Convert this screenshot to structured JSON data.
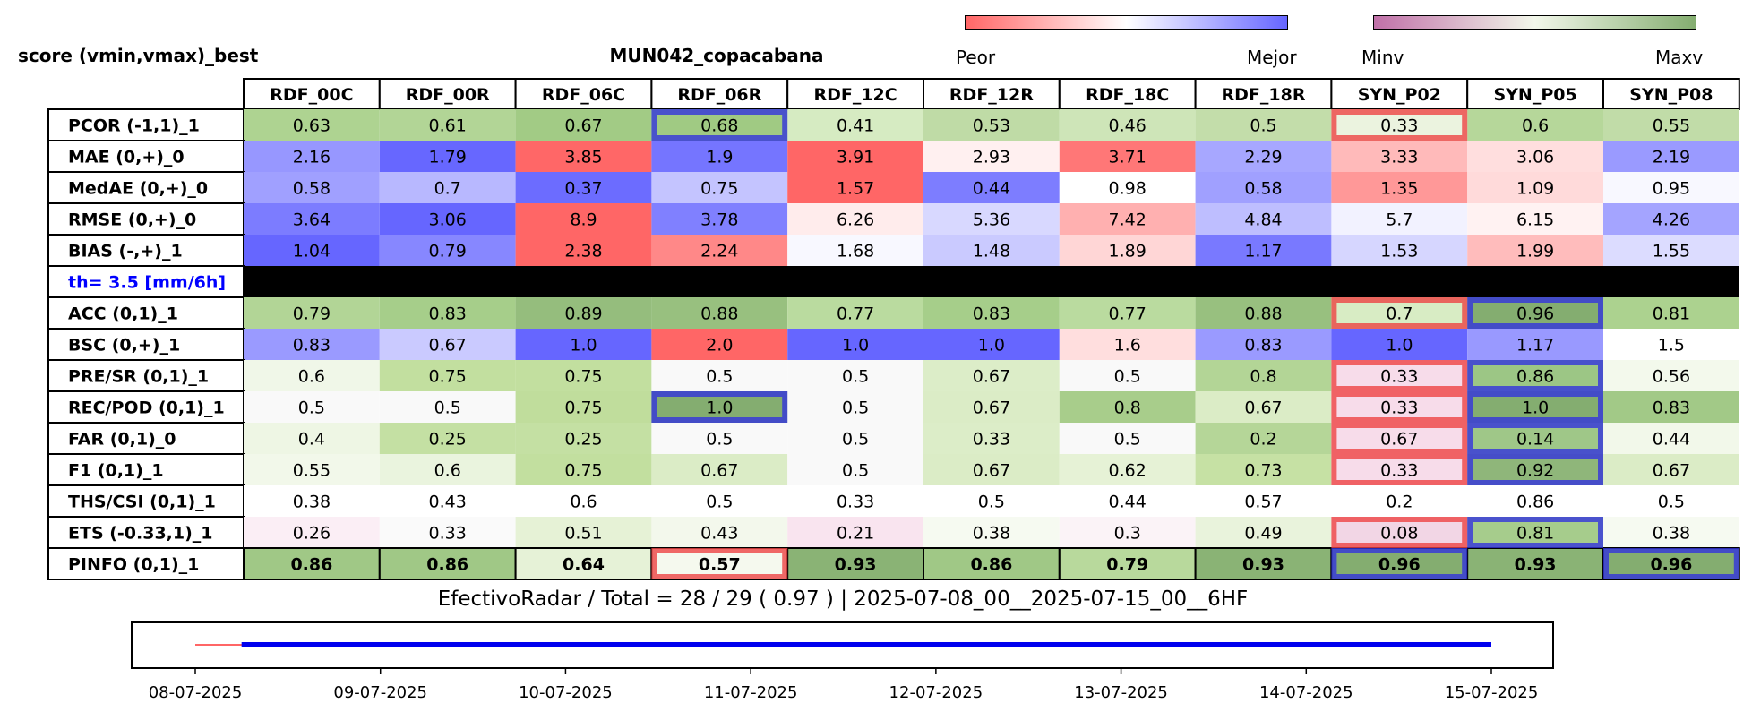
{
  "header": {
    "left_label": "score (vmin,vmax)_best",
    "title": "MUN042_copacabana"
  },
  "colorbars": {
    "diverging": {
      "low_label": "Peor",
      "high_label": "Mejor",
      "low_color": "#ff6666",
      "mid_color": "#ffffff",
      "high_color": "#6666ff"
    },
    "sequential": {
      "low_label": "Minv",
      "high_label": "Maxv",
      "low_color": "#c070a8",
      "mid_color": "#f2f7ea",
      "high_color": "#84ad70"
    }
  },
  "chart_data": {
    "type": "heatmap",
    "columns": [
      "RDF_00C",
      "RDF_00R",
      "RDF_06C",
      "RDF_06R",
      "RDF_12C",
      "RDF_12R",
      "RDF_18C",
      "RDF_18R",
      "SYN_P02",
      "SYN_P05",
      "SYN_P08"
    ],
    "rows": [
      {
        "label": "PCOR (-1,1)_1",
        "values": [
          "0.63",
          "0.61",
          "0.67",
          "0.68",
          "0.41",
          "0.53",
          "0.46",
          "0.5",
          "0.33",
          "0.6",
          "0.55"
        ],
        "colors": [
          "#aed391",
          "#b2d596",
          "#a2cb85",
          "#a0ca83",
          "#d6ebc2",
          "#bfdba6",
          "#cee5b8",
          "#c3ddaa",
          "#ebf3df",
          "#b6d79a",
          "#c1dca8"
        ]
      },
      {
        "label": "MAE (0,+)_0",
        "values": [
          "2.16",
          "1.79",
          "3.85",
          "1.9",
          "3.91",
          "2.93",
          "3.71",
          "2.29",
          "3.33",
          "3.06",
          "2.19"
        ],
        "colors": [
          "#9797ff",
          "#6767ff",
          "#ff6767",
          "#7575ff",
          "#ff6666",
          "#fff0f0",
          "#ff7777",
          "#a7a7ff",
          "#ffbaba",
          "#ffdede",
          "#9a9aff"
        ]
      },
      {
        "label": "MedAE (0,+)_0",
        "values": [
          "0.58",
          "0.7",
          "0.37",
          "0.75",
          "1.57",
          "0.44",
          "0.98",
          "0.58",
          "1.35",
          "1.09",
          "0.95"
        ],
        "colors": [
          "#a0a0ff",
          "#b8b8ff",
          "#6c6cff",
          "#c4c4ff",
          "#ff6666",
          "#7d7dff",
          "#ffffff",
          "#a0a0ff",
          "#ff9898",
          "#ffdada",
          "#f8f8ff"
        ]
      },
      {
        "label": "RMSE (0,+)_0",
        "values": [
          "3.64",
          "3.06",
          "8.9",
          "3.78",
          "6.26",
          "5.36",
          "7.42",
          "4.84",
          "5.7",
          "6.15",
          "4.26"
        ],
        "colors": [
          "#7c7cff",
          "#6666ff",
          "#ff6666",
          "#8080ff",
          "#ffecec",
          "#d8d8ff",
          "#ffb0b0",
          "#bebeff",
          "#f2f2ff",
          "#fff2f2",
          "#a4a4ff"
        ]
      },
      {
        "label": "BIAS (-,+)_1",
        "values": [
          "1.04",
          "0.79",
          "2.38",
          "2.24",
          "1.68",
          "1.48",
          "1.89",
          "1.17",
          "1.53",
          "1.99",
          "1.55"
        ],
        "colors": [
          "#6666ff",
          "#8787ff",
          "#ff6666",
          "#ff8888",
          "#f8f8ff",
          "#cacaff",
          "#ffd6d6",
          "#7979ff",
          "#d6d6ff",
          "#ffbcbc",
          "#dcdcff"
        ]
      },
      {
        "label": "th= 3.5 [mm/6h]",
        "separator": true
      },
      {
        "label": "ACC (0,1)_1",
        "values": [
          "0.79",
          "0.83",
          "0.89",
          "0.88",
          "0.77",
          "0.83",
          "0.77",
          "0.88",
          "0.7",
          "0.96",
          "0.81"
        ],
        "colors": [
          "#b2d596",
          "#a6ce8a",
          "#95bd7d",
          "#98c07f",
          "#badb9f",
          "#a6ce8a",
          "#badb9f",
          "#98c07f",
          "#d8ecc4",
          "#84ad70",
          "#acd28f"
        ]
      },
      {
        "label": "BSC (0,+)_1",
        "values": [
          "0.83",
          "0.67",
          "1.0",
          "2.0",
          "1.0",
          "1.0",
          "1.6",
          "0.83",
          "1.0",
          "1.17",
          "1.5"
        ],
        "colors": [
          "#9a9aff",
          "#cacaff",
          "#6666ff",
          "#ff6666",
          "#6666ff",
          "#6666ff",
          "#ffdede",
          "#9a9aff",
          "#6666ff",
          "#9999ff",
          "#ffffff"
        ]
      },
      {
        "label": "PRE/SR (0,1)_1",
        "values": [
          "0.6",
          "0.75",
          "0.75",
          "0.5",
          "0.5",
          "0.67",
          "0.5",
          "0.8",
          "0.33",
          "0.86",
          "0.56"
        ],
        "colors": [
          "#f0f7e8",
          "#c2df9f",
          "#c2df9f",
          "#f9f9f9",
          "#f9f9f9",
          "#dcedc8",
          "#f9f9f9",
          "#b3d596",
          "#f7dcea",
          "#9cc685",
          "#f3f9ec"
        ]
      },
      {
        "label": "REC/POD (0,1)_1",
        "values": [
          "0.5",
          "0.5",
          "0.75",
          "1.0",
          "0.5",
          "0.67",
          "0.8",
          "0.67",
          "0.33",
          "1.0",
          "0.83"
        ],
        "colors": [
          "#f9f9f9",
          "#f9f9f9",
          "#c0dd9c",
          "#84ad70",
          "#f9f9f9",
          "#dbecc6",
          "#a8cd8b",
          "#dbecc6",
          "#f7dcea",
          "#84ad70",
          "#a2c987"
        ]
      },
      {
        "label": "FAR (0,1)_0",
        "values": [
          "0.4",
          "0.25",
          "0.25",
          "0.5",
          "0.5",
          "0.33",
          "0.5",
          "0.2",
          "0.67",
          "0.14",
          "0.44"
        ],
        "colors": [
          "#eef6e4",
          "#c4e0a3",
          "#c4e0a3",
          "#f9f9f9",
          "#f9f9f9",
          "#dcedc8",
          "#f9f9f9",
          "#b5d698",
          "#f7dcea",
          "#9fc788",
          "#f2f8ea"
        ]
      },
      {
        "label": "F1 (0,1)_1",
        "values": [
          "0.55",
          "0.6",
          "0.75",
          "0.67",
          "0.5",
          "0.67",
          "0.62",
          "0.73",
          "0.33",
          "0.92",
          "0.67"
        ],
        "colors": [
          "#f2f8ea",
          "#eaf4de",
          "#c2df9f",
          "#dbecc6",
          "#f9f9f9",
          "#dbecc6",
          "#e6f2d6",
          "#c6e1a4",
          "#f7dcea",
          "#8fb67a",
          "#dbecc6"
        ]
      },
      {
        "label": "THS/CSI (0,1)_1",
        "values": [
          "0.38",
          "0.43",
          "0.6",
          "0.5",
          "0.33",
          "0.5",
          "0.44",
          "0.57",
          "0.2",
          "0.86",
          "0.5"
        ],
        "colors": [
          "#ffffff",
          "#ffffff",
          "#ffffff",
          "#ffffff",
          "#ffffff",
          "#ffffff",
          "#ffffff",
          "#ffffff",
          "#ffffff",
          "#ffffff",
          "#ffffff"
        ]
      },
      {
        "label": "ETS (-0.33,1)_1",
        "values": [
          "0.26",
          "0.33",
          "0.51",
          "0.43",
          "0.21",
          "0.38",
          "0.3",
          "0.49",
          "0.08",
          "0.81",
          "0.38"
        ],
        "colors": [
          "#fbeef5",
          "#fafafa",
          "#e6f2d6",
          "#f3f8ec",
          "#f9e4ef",
          "#f6faf1",
          "#fbf3f7",
          "#e9f3dc",
          "#f2d6e5",
          "#a6cc8c",
          "#f6faf1"
        ]
      },
      {
        "label": "PINFO (0,1)_1",
        "values": [
          "0.86",
          "0.86",
          "0.64",
          "0.57",
          "0.93",
          "0.86",
          "0.79",
          "0.93",
          "0.96",
          "0.93",
          "0.96"
        ],
        "bold": true,
        "colors": [
          "#a0c886",
          "#a0c886",
          "#e6f2d7",
          "#f5f9ee",
          "#8ab375",
          "#a0c886",
          "#b8d99c",
          "#8ab375",
          "#84ad70",
          "#8ab375",
          "#84ad70"
        ]
      }
    ],
    "highlights": [
      {
        "row": 0,
        "col": 3,
        "color": "#3333dd"
      },
      {
        "row": 0,
        "col": 8,
        "color": "#ee4444"
      },
      {
        "row": 6,
        "col": 8,
        "color": "#ee4444"
      },
      {
        "row": 6,
        "col": 9,
        "color": "#3333dd"
      },
      {
        "row": 8,
        "col": 8,
        "color": "#ee4444"
      },
      {
        "row": 8,
        "col": 9,
        "color": "#3333dd"
      },
      {
        "row": 9,
        "col": 3,
        "color": "#3333dd"
      },
      {
        "row": 9,
        "col": 8,
        "color": "#ee4444"
      },
      {
        "row": 9,
        "col": 9,
        "color": "#3333dd"
      },
      {
        "row": 10,
        "col": 8,
        "color": "#ee4444"
      },
      {
        "row": 10,
        "col": 9,
        "color": "#3333dd"
      },
      {
        "row": 11,
        "col": 8,
        "color": "#ee4444"
      },
      {
        "row": 11,
        "col": 9,
        "color": "#3333dd"
      },
      {
        "row": 13,
        "col": 8,
        "color": "#ee4444"
      },
      {
        "row": 13,
        "col": 9,
        "color": "#3333dd"
      },
      {
        "row": 14,
        "col": 3,
        "color": "#ee4444"
      },
      {
        "row": 14,
        "col": 8,
        "color": "#3333dd"
      },
      {
        "row": 14,
        "col": 10,
        "color": "#3333dd"
      }
    ],
    "separator_label_color": "#0000ff"
  },
  "footer": {
    "summary": "EfectivoRadar / Total  =  28 / 29 ( 0.97 ) | 2025-07-08_00__2025-07-15_00__6HF"
  },
  "timeline": {
    "ticks": [
      "08-07-2025",
      "09-07-2025",
      "10-07-2025",
      "11-07-2025",
      "12-07-2025",
      "13-07-2025",
      "14-07-2025",
      "15-07-2025"
    ],
    "total_start": "08-07-2025",
    "radar_start": "08-07-2025 06:00",
    "end": "15-07-2025",
    "total_color": "#ff6666",
    "radar_color": "#0000ee"
  }
}
